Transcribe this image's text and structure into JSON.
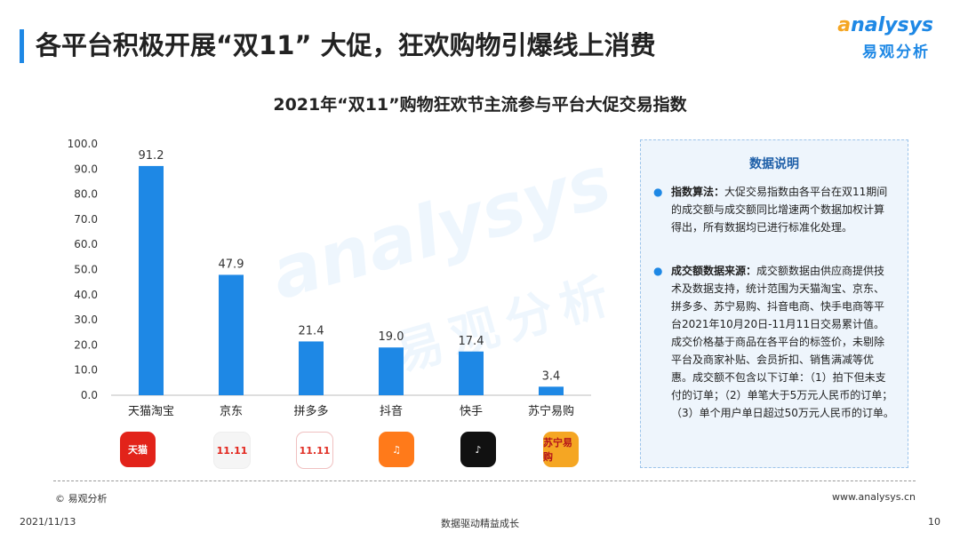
{
  "header": {
    "title": "各平台积极开展“双11” 大促，狂欢购物引爆线上消费",
    "logo_en_a": "a",
    "logo_en_rest": "nalysys",
    "logo_cn": "易观分析"
  },
  "chart_data": {
    "type": "bar",
    "title": "2021年“双11”购物狂欢节主流参与平台大促交易指数",
    "categories": [
      "天猫淘宝",
      "京东",
      "拼多多",
      "抖音",
      "快手",
      "苏宁易购"
    ],
    "values": [
      91.2,
      47.9,
      21.4,
      19.0,
      17.4,
      3.4
    ],
    "value_labels": [
      "91.2",
      "47.9",
      "21.4",
      "19.0",
      "17.4",
      "3.4"
    ],
    "ylim": [
      0,
      100
    ],
    "yticks": [
      "0.0",
      "10.0",
      "20.0",
      "30.0",
      "40.0",
      "50.0",
      "60.0",
      "70.0",
      "80.0",
      "90.0",
      "100.0"
    ],
    "xlabel": "",
    "ylabel": "",
    "grid": false,
    "bar_color": "#1E88E5"
  },
  "app_icons": [
    {
      "name": "tmall-icon",
      "label": "天猫"
    },
    {
      "name": "jd-icon",
      "label": "11.11"
    },
    {
      "name": "pdd-icon",
      "label": "11.11"
    },
    {
      "name": "douyin-icon",
      "label": "♫"
    },
    {
      "name": "kuaishou-icon",
      "label": "♪"
    },
    {
      "name": "suning-icon",
      "label": "苏宁易购"
    }
  ],
  "info_box": {
    "title": "数据说明",
    "items": [
      {
        "label": "指数算法：",
        "text": "大促交易指数由各平台在双11期间的成交额与成交额同比增速两个数据加权计算得出，所有数据均已进行标准化处理。"
      },
      {
        "label": "成交额数据来源：",
        "text": "成交额数据由供应商提供技术及数据支持，统计范围为天猫淘宝、京东、拼多多、苏宁易购、抖音电商、快手电商等平台2021年10月20日-11月11日交易累计值。成交价格基于商品在各平台的标签价，未剔除平台及商家补贴、会员折扣、销售满减等优惠。成交额不包含以下订单：（1）拍下但未支付的订单；（2）单笔大于5万元人民币的订单；（3）单个用户单日超过50万元人民币的订单。"
      }
    ]
  },
  "watermark": {
    "en": "analysys",
    "cn": "易观分析"
  },
  "footer": {
    "copyright": "© 易观分析",
    "website": "www.analysys.cn",
    "date": "2021/11/13",
    "slogan": "数据驱动精益成长",
    "page": "10"
  },
  "colors": {
    "accent": "#1E88E5",
    "logo_orange": "#F5A623",
    "info_bg": "#EEF5FC"
  }
}
